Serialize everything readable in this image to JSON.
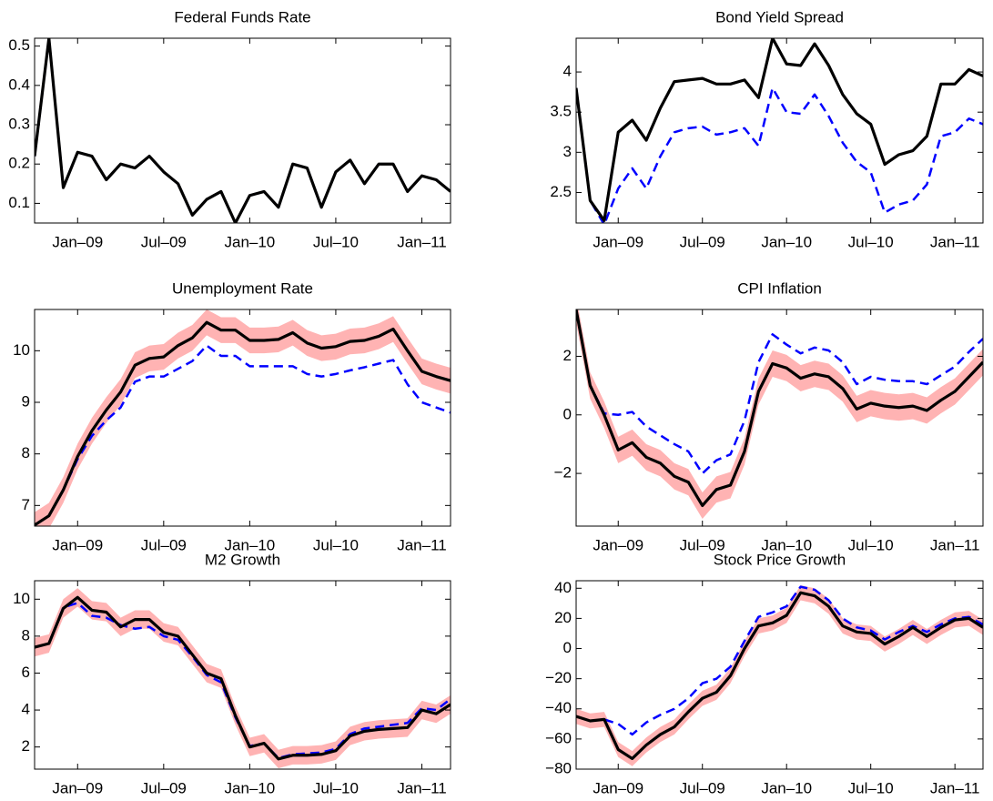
{
  "chart_data": [
    {
      "type": "line",
      "title": "Federal Funds Rate",
      "x": [
        "2008-10",
        "2008-11",
        "2008-12",
        "2009-01",
        "2009-02",
        "2009-03",
        "2009-04",
        "2009-05",
        "2009-06",
        "2009-07",
        "2009-08",
        "2009-09",
        "2009-10",
        "2009-11",
        "2009-12",
        "2010-01",
        "2010-02",
        "2010-03",
        "2010-04",
        "2010-05",
        "2010-06",
        "2010-07",
        "2010-08",
        "2010-09",
        "2010-10",
        "2010-11",
        "2010-12",
        "2011-01",
        "2011-02",
        "2011-03"
      ],
      "xlim": [
        "2008-10",
        "2011-03"
      ],
      "xticks": [
        {
          "value": "2009-01",
          "label": "Jan–09"
        },
        {
          "value": "2009-07",
          "label": "Jul–09"
        },
        {
          "value": "2010-01",
          "label": "Jan–10"
        },
        {
          "value": "2010-07",
          "label": "Jul–10"
        },
        {
          "value": "2011-01",
          "label": "Jan–11"
        }
      ],
      "ylim": [
        0.05,
        0.52
      ],
      "yticks": [
        0.1,
        0.2,
        0.3,
        0.4,
        0.5
      ],
      "series": [
        {
          "color": "#000000",
          "values": [
            0.22,
            0.52,
            0.14,
            0.23,
            0.22,
            0.16,
            0.2,
            0.19,
            0.22,
            0.18,
            0.15,
            0.07,
            0.11,
            0.13,
            0.05,
            0.12,
            0.13,
            0.09,
            0.2,
            0.19,
            0.09,
            0.18,
            0.21,
            0.15,
            0.2,
            0.2,
            0.13,
            0.17,
            0.16,
            0.13
          ]
        },
        {
          "color": "#0000ff",
          "dash": true,
          "values": [
            0.22,
            0.52,
            0.14,
            0.23,
            0.22,
            0.16,
            0.2,
            0.19,
            0.22,
            0.18,
            0.15,
            0.07,
            0.11,
            0.13,
            0.05,
            0.12,
            0.13,
            0.09,
            0.2,
            0.19,
            0.09,
            0.18,
            0.21,
            0.15,
            0.2,
            0.2,
            0.13,
            0.17,
            0.16,
            0.13
          ]
        }
      ]
    },
    {
      "type": "line",
      "title": "Bond Yield Spread",
      "x": [
        "2008-10",
        "2008-11",
        "2008-12",
        "2009-01",
        "2009-02",
        "2009-03",
        "2009-04",
        "2009-05",
        "2009-06",
        "2009-07",
        "2009-08",
        "2009-09",
        "2009-10",
        "2009-11",
        "2009-12",
        "2010-01",
        "2010-02",
        "2010-03",
        "2010-04",
        "2010-05",
        "2010-06",
        "2010-07",
        "2010-08",
        "2010-09",
        "2010-10",
        "2010-11",
        "2010-12",
        "2011-01",
        "2011-02",
        "2011-03"
      ],
      "xlim": [
        "2008-10",
        "2011-03"
      ],
      "xticks": [
        {
          "value": "2009-01",
          "label": "Jan–09"
        },
        {
          "value": "2009-07",
          "label": "Jul–09"
        },
        {
          "value": "2010-01",
          "label": "Jan–10"
        },
        {
          "value": "2010-07",
          "label": "Jul–10"
        },
        {
          "value": "2011-01",
          "label": "Jan–11"
        }
      ],
      "ylim": [
        2.12,
        4.42
      ],
      "yticks": [
        2.5,
        3,
        3.5,
        4
      ],
      "series": [
        {
          "color": "#000000",
          "values": [
            3.8,
            2.4,
            2.15,
            3.25,
            3.4,
            3.15,
            3.55,
            3.88,
            3.9,
            3.92,
            3.85,
            3.85,
            3.9,
            3.68,
            4.42,
            4.1,
            4.08,
            4.35,
            4.08,
            3.72,
            3.48,
            3.35,
            2.85,
            2.97,
            3.02,
            3.2,
            3.85,
            3.85,
            4.03,
            3.95
          ]
        },
        {
          "color": "#0000ff",
          "dash": true,
          "values": [
            3.8,
            2.4,
            2.1,
            2.55,
            2.8,
            2.55,
            2.95,
            3.25,
            3.3,
            3.32,
            3.22,
            3.25,
            3.3,
            3.08,
            3.8,
            3.5,
            3.48,
            3.72,
            3.45,
            3.12,
            2.88,
            2.75,
            2.25,
            2.35,
            2.4,
            2.6,
            3.2,
            3.25,
            3.42,
            3.35
          ]
        }
      ]
    },
    {
      "type": "line",
      "title": "Unemployment Rate",
      "x": [
        "2008-10",
        "2008-11",
        "2008-12",
        "2009-01",
        "2009-02",
        "2009-03",
        "2009-04",
        "2009-05",
        "2009-06",
        "2009-07",
        "2009-08",
        "2009-09",
        "2009-10",
        "2009-11",
        "2009-12",
        "2010-01",
        "2010-02",
        "2010-03",
        "2010-04",
        "2010-05",
        "2010-06",
        "2010-07",
        "2010-08",
        "2010-09",
        "2010-10",
        "2010-11",
        "2010-12",
        "2011-01",
        "2011-02",
        "2011-03"
      ],
      "xlim": [
        "2008-10",
        "2011-03"
      ],
      "xticks": [
        {
          "value": "2009-01",
          "label": "Jan–09"
        },
        {
          "value": "2009-07",
          "label": "Jul–09"
        },
        {
          "value": "2010-01",
          "label": "Jan–10"
        },
        {
          "value": "2010-07",
          "label": "Jul–10"
        },
        {
          "value": "2011-01",
          "label": "Jan–11"
        }
      ],
      "ylim": [
        6.6,
        10.8
      ],
      "yticks": [
        7,
        8,
        9,
        10
      ],
      "series": [
        {
          "color": "#000000",
          "band": 0.25,
          "band_color": "#ffb3b3",
          "values": [
            6.62,
            6.8,
            7.3,
            7.95,
            8.45,
            8.85,
            9.2,
            9.72,
            9.85,
            9.88,
            10.1,
            10.25,
            10.55,
            10.4,
            10.4,
            10.2,
            10.2,
            10.22,
            10.35,
            10.15,
            10.05,
            10.08,
            10.18,
            10.2,
            10.28,
            10.42,
            10.0,
            9.6,
            9.5,
            9.42
          ]
        },
        {
          "color": "#0000ff",
          "dash": true,
          "values": [
            6.62,
            6.8,
            7.3,
            7.9,
            8.35,
            8.65,
            8.9,
            9.4,
            9.5,
            9.5,
            9.65,
            9.8,
            10.1,
            9.9,
            9.9,
            9.7,
            9.7,
            9.7,
            9.7,
            9.55,
            9.5,
            9.55,
            9.62,
            9.68,
            9.75,
            9.82,
            9.35,
            9.0,
            8.9,
            8.8
          ]
        }
      ]
    },
    {
      "type": "line",
      "title": "CPI Inflation",
      "x": [
        "2008-10",
        "2008-11",
        "2008-12",
        "2009-01",
        "2009-02",
        "2009-03",
        "2009-04",
        "2009-05",
        "2009-06",
        "2009-07",
        "2009-08",
        "2009-09",
        "2009-10",
        "2009-11",
        "2009-12",
        "2010-01",
        "2010-02",
        "2010-03",
        "2010-04",
        "2010-05",
        "2010-06",
        "2010-07",
        "2010-08",
        "2010-09",
        "2010-10",
        "2010-11",
        "2010-12",
        "2011-01",
        "2011-02",
        "2011-03"
      ],
      "xlim": [
        "2008-10",
        "2011-03"
      ],
      "xticks": [
        {
          "value": "2009-01",
          "label": "Jan–09"
        },
        {
          "value": "2009-07",
          "label": "Jul–09"
        },
        {
          "value": "2010-01",
          "label": "Jan–10"
        },
        {
          "value": "2010-07",
          "label": "Jul–10"
        },
        {
          "value": "2011-01",
          "label": "Jan–11"
        }
      ],
      "ylim": [
        -3.8,
        3.6
      ],
      "yticks": [
        {
          "value": -2,
          "label": "−2"
        },
        0,
        2
      ],
      "series": [
        {
          "color": "#000000",
          "band": 0.45,
          "band_color": "#ffb3b3",
          "values": [
            3.6,
            1.0,
            0,
            -1.2,
            -0.95,
            -1.45,
            -1.65,
            -2.1,
            -2.3,
            -3.1,
            -2.55,
            -2.4,
            -1.25,
            0.8,
            1.75,
            1.6,
            1.25,
            1.4,
            1.3,
            0.9,
            0.2,
            0.4,
            0.3,
            0.25,
            0.3,
            0.15,
            0.5,
            0.8,
            1.3,
            1.8
          ]
        },
        {
          "color": "#0000ff",
          "dash": true,
          "values": [
            3.6,
            1.0,
            0.05,
            0,
            0.1,
            -0.4,
            -0.7,
            -1.0,
            -1.25,
            -2.0,
            -1.55,
            -1.35,
            -0.2,
            1.8,
            2.75,
            2.4,
            2.1,
            2.3,
            2.2,
            1.8,
            1.05,
            1.3,
            1.2,
            1.15,
            1.15,
            1.05,
            1.35,
            1.65,
            2.15,
            2.6
          ]
        }
      ]
    },
    {
      "type": "line",
      "title": "M2 Growth",
      "x": [
        "2008-10",
        "2008-11",
        "2008-12",
        "2009-01",
        "2009-02",
        "2009-03",
        "2009-04",
        "2009-05",
        "2009-06",
        "2009-07",
        "2009-08",
        "2009-09",
        "2009-10",
        "2009-11",
        "2009-12",
        "2010-01",
        "2010-02",
        "2010-03",
        "2010-04",
        "2010-05",
        "2010-06",
        "2010-07",
        "2010-08",
        "2010-09",
        "2010-10",
        "2010-11",
        "2010-12",
        "2011-01",
        "2011-02",
        "2011-03"
      ],
      "xlim": [
        "2008-10",
        "2011-03"
      ],
      "xticks": [
        {
          "value": "2009-01",
          "label": "Jan–09"
        },
        {
          "value": "2009-07",
          "label": "Jul–09"
        },
        {
          "value": "2010-01",
          "label": "Jan–10"
        },
        {
          "value": "2010-07",
          "label": "Jul–10"
        },
        {
          "value": "2011-01",
          "label": "Jan–11"
        }
      ],
      "ylim": [
        0.8,
        11
      ],
      "yticks": [
        2,
        4,
        6,
        8,
        10
      ],
      "series": [
        {
          "color": "#000000",
          "band": 0.5,
          "band_color": "#ffb3b3",
          "values": [
            7.4,
            7.6,
            9.5,
            10.1,
            9.4,
            9.3,
            8.5,
            8.9,
            8.9,
            8.2,
            8.0,
            7.0,
            6.0,
            5.7,
            3.7,
            2.0,
            2.2,
            1.35,
            1.55,
            1.55,
            1.6,
            1.8,
            2.6,
            2.85,
            2.95,
            3.0,
            3.05,
            4.0,
            3.8,
            4.3
          ]
        },
        {
          "color": "#0000ff",
          "dash": true,
          "values": [
            7.4,
            7.6,
            9.55,
            9.8,
            9.1,
            9.0,
            8.6,
            8.4,
            8.5,
            8.0,
            7.8,
            6.9,
            5.9,
            5.5,
            3.6,
            2.05,
            2.2,
            1.4,
            1.6,
            1.65,
            1.7,
            1.9,
            2.7,
            3.0,
            3.1,
            3.2,
            3.3,
            4.1,
            4.0,
            4.6
          ]
        }
      ]
    },
    {
      "type": "line",
      "title": "Stock Price Growth",
      "x": [
        "2008-10",
        "2008-11",
        "2008-12",
        "2009-01",
        "2009-02",
        "2009-03",
        "2009-04",
        "2009-05",
        "2009-06",
        "2009-07",
        "2009-08",
        "2009-09",
        "2009-10",
        "2009-11",
        "2009-12",
        "2010-01",
        "2010-02",
        "2010-03",
        "2010-04",
        "2010-05",
        "2010-06",
        "2010-07",
        "2010-08",
        "2010-09",
        "2010-10",
        "2010-11",
        "2010-12",
        "2011-01",
        "2011-02",
        "2011-03"
      ],
      "xlim": [
        "2008-10",
        "2011-03"
      ],
      "xticks": [
        {
          "value": "2009-01",
          "label": "Jan–09"
        },
        {
          "value": "2009-07",
          "label": "Jul–09"
        },
        {
          "value": "2010-01",
          "label": "Jan–10"
        },
        {
          "value": "2010-07",
          "label": "Jul–10"
        },
        {
          "value": "2011-01",
          "label": "Jan–11"
        }
      ],
      "ylim": [
        -80,
        45
      ],
      "yticks": [
        {
          "value": -80,
          "label": "−80"
        },
        {
          "value": -60,
          "label": "−60"
        },
        {
          "value": -40,
          "label": "−40"
        },
        {
          "value": -20,
          "label": "−20"
        },
        0,
        20,
        40
      ],
      "series": [
        {
          "color": "#000000",
          "band": 5,
          "band_color": "#ffb3b3",
          "values": [
            -45,
            -48,
            -47,
            -67,
            -73,
            -64,
            -57,
            -52,
            -42,
            -33,
            -29,
            -18,
            0,
            15,
            17,
            22,
            37,
            35,
            28,
            15,
            11,
            10,
            3,
            8,
            14,
            8,
            14,
            19,
            20,
            14
          ]
        },
        {
          "color": "#0000ff",
          "dash": true,
          "values": [
            -45,
            -48,
            -47,
            -50,
            -57,
            -49,
            -44,
            -40,
            -33,
            -23,
            -20,
            -12,
            5,
            21,
            24,
            28,
            41,
            39,
            32,
            20,
            14,
            12,
            6,
            11,
            15,
            11,
            16,
            20,
            21,
            16
          ]
        }
      ]
    }
  ]
}
